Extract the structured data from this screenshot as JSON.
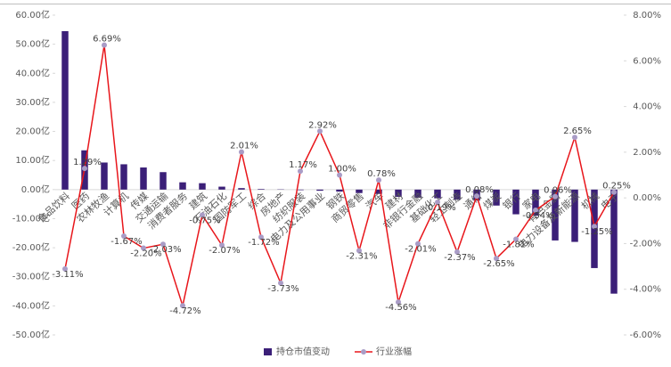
{
  "chart_data": {
    "type": "bar_line",
    "categories": [
      "食品饮料",
      "医药",
      "农林牧渔",
      "计算机",
      "传媒",
      "交通运输",
      "消费者服务",
      "建筑",
      "石油石化",
      "国防军工",
      "综合",
      "房地产",
      "纺织服装",
      "电力及公用事业",
      "钢铁",
      "商贸零售",
      "汽车",
      "建材",
      "非银行金融",
      "基础化工",
      "轻工制造",
      "通信",
      "煤炭",
      "银行",
      "家电",
      "有色金属",
      "电力设备及新能源",
      "机械",
      "电子"
    ],
    "series": [
      {
        "name": "持仓市值变动",
        "color": "#3b1f78",
        "type": "bar",
        "values": [
          54.5,
          13.5,
          9.3,
          8.7,
          7.6,
          6.0,
          2.5,
          2.2,
          1.0,
          0.5,
          0.2,
          0.1,
          -0.2,
          -0.4,
          -0.7,
          -1.2,
          -1.5,
          -2.5,
          -2.8,
          -3.0,
          -3.5,
          -3.8,
          -5.5,
          -8.5,
          -9.0,
          -17.5,
          -18.0,
          -27.0,
          -35.8
        ]
      },
      {
        "name": "行业涨幅",
        "color": "#e8161b",
        "marker_color": "#a99cc6",
        "type": "line",
        "axis": "y2",
        "values": [
          -3.11,
          1.29,
          6.69,
          -1.67,
          -2.2,
          -2.03,
          -4.72,
          -0.75,
          -2.07,
          2.01,
          -1.72,
          -3.73,
          1.17,
          2.92,
          1.0,
          -2.31,
          0.78,
          -4.56,
          -2.01,
          -0.19,
          -2.37,
          0.08,
          -2.65,
          -1.81,
          -0.54,
          0.06,
          2.65,
          -1.25,
          0.25
        ],
        "value_labels": [
          "-3.11%",
          "1.29%",
          "6.69%",
          "-1.67%",
          "-2.20%",
          "-2.03%",
          "-4.72%",
          "-0.75%",
          "-2.07%",
          "2.01%",
          "-1.72%",
          "-3.73%",
          "1.17%",
          "2.92%",
          "1.00%",
          "-2.31%",
          "0.78%",
          "-4.56%",
          "-2.01%",
          "-0.19%",
          "-2.37%",
          "0.08%",
          "-2.65%",
          "-1.81%",
          "-0.54%",
          "0.06%",
          "2.65%",
          "-1.25%",
          "0.25%"
        ]
      }
    ],
    "ylim": [
      -50,
      60
    ],
    "yticks": [
      {
        "value": 60,
        "label": "60.00亿"
      },
      {
        "value": 50,
        "label": "50.00亿"
      },
      {
        "value": 40,
        "label": "40.00亿"
      },
      {
        "value": 30,
        "label": "30.00亿"
      },
      {
        "value": 20,
        "label": "20.00亿"
      },
      {
        "value": 10,
        "label": "10.00亿"
      },
      {
        "value": 0,
        "label": "0.00亿"
      },
      {
        "value": -10,
        "label": "-10.00亿"
      },
      {
        "value": -20,
        "label": "-20.00亿"
      },
      {
        "value": -30,
        "label": "-30.00亿"
      },
      {
        "value": -40,
        "label": "-40.00亿"
      },
      {
        "value": -50,
        "label": "-50.00亿"
      }
    ],
    "y2lim": [
      -6,
      8
    ],
    "y2ticks": [
      {
        "value": 8,
        "label": "8.00%"
      },
      {
        "value": 6,
        "label": "6.00%"
      },
      {
        "value": 4,
        "label": "4.00%"
      },
      {
        "value": 2,
        "label": "2.00%"
      },
      {
        "value": 0,
        "label": "0.00%"
      },
      {
        "value": -2,
        "label": "-2.00%"
      },
      {
        "value": -4,
        "label": "-4.00%"
      },
      {
        "value": -6,
        "label": "-6.00%"
      }
    ],
    "legend": "bottom"
  }
}
